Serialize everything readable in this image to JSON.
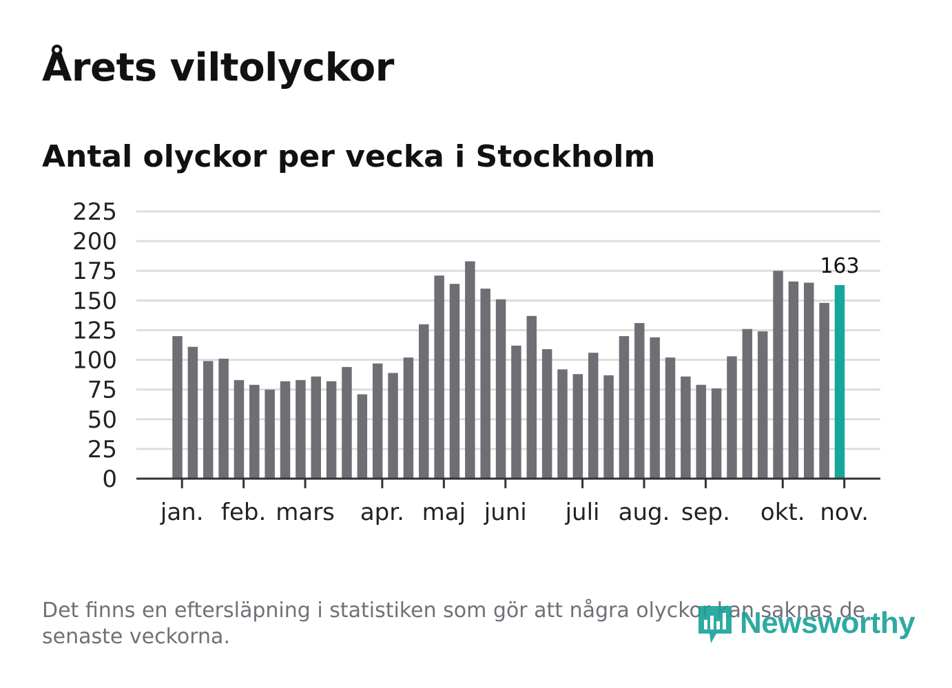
{
  "header": {
    "title": "Årets viltolyckor",
    "subtitle": "Antal olyckor per vecka i Stockholm"
  },
  "footer": {
    "note": "Det finns en eftersläpning i statistiken som gör att några olyckor kan saknas de senaste veckorna.",
    "brand": "Newsworthy"
  },
  "colors": {
    "bar": "#6f6e75",
    "highlight": "#16a69a",
    "grid": "#dddddd",
    "axis": "#333333",
    "brand": "#18a198"
  },
  "chart_data": {
    "type": "bar",
    "title": "Antal olyckor per vecka i Stockholm",
    "xlabel": "",
    "ylabel": "",
    "ylim": [
      0,
      225
    ],
    "yticks": [
      "0",
      "25",
      "50",
      "75",
      "100",
      "125",
      "150",
      "175",
      "200",
      "225"
    ],
    "grid": true,
    "values": [
      120,
      111,
      99,
      101,
      83,
      79,
      75,
      82,
      83,
      86,
      82,
      94,
      71,
      97,
      89,
      102,
      130,
      171,
      164,
      183,
      160,
      151,
      112,
      137,
      109,
      92,
      88,
      106,
      87,
      120,
      131,
      119,
      102,
      86,
      79,
      76,
      103,
      126,
      124,
      175,
      166,
      165,
      148,
      163
    ],
    "highlight_index": 43,
    "highlight_label": "163",
    "month_labels": [
      "jan.",
      "feb.",
      "mars",
      "apr.",
      "maj",
      "juni",
      "juli",
      "aug.",
      "sep.",
      "okt.",
      "nov."
    ],
    "month_positions": [
      0.3,
      4.3,
      8.3,
      13.3,
      17.3,
      21.3,
      26.3,
      30.3,
      34.3,
      39.3,
      43.3
    ]
  }
}
